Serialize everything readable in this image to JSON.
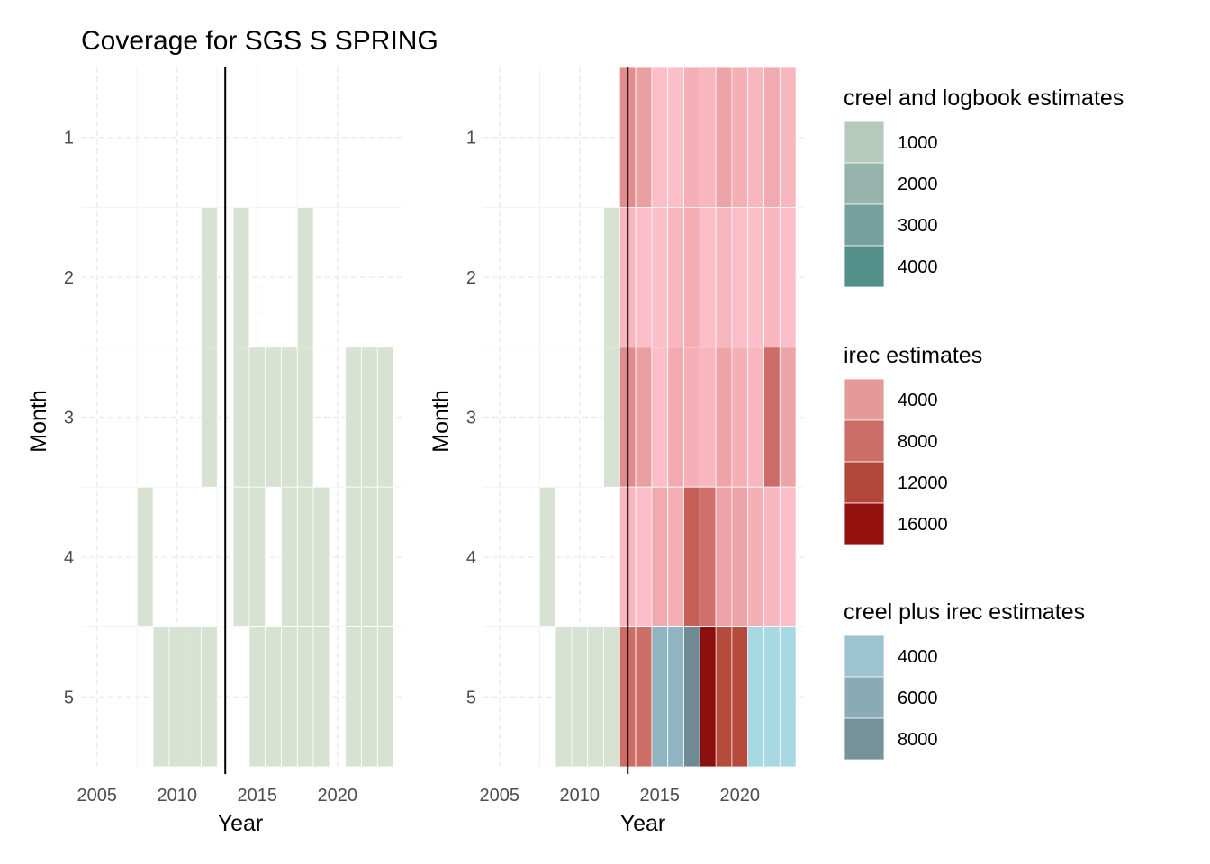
{
  "chart_data": {
    "type": "heatmap",
    "title": "Coverage for SGS S SPRING",
    "xlabel": "Year",
    "ylabel": "Month",
    "x_ticks": [
      2005,
      2010,
      2015,
      2020
    ],
    "y_ticks": [
      1,
      2,
      3,
      4,
      5
    ],
    "xlim": [
      2004,
      2024
    ],
    "ylim": [
      0.5,
      5.5
    ],
    "grid": true,
    "vline_x": 2013,
    "legend_position": "right",
    "colors": {
      "creel_base": "#d8e2d3",
      "creel_scale": [
        "#b6cabc",
        "#97b4ac",
        "#75a09b",
        "#54908a"
      ],
      "irec_scale": [
        "#e59a9a",
        "#cc6e68",
        "#b24639",
        "#94120e"
      ],
      "combo_scale": [
        "#9dc3d0",
        "#8aaab5",
        "#76939c"
      ]
    },
    "legends": [
      {
        "title": "creel and logbook estimates",
        "items": [
          {
            "label": "1000",
            "color": "#b6cabc"
          },
          {
            "label": "2000",
            "color": "#97b4ac"
          },
          {
            "label": "3000",
            "color": "#75a09b"
          },
          {
            "label": "4000",
            "color": "#54908a"
          }
        ]
      },
      {
        "title": "irec estimates",
        "items": [
          {
            "label": "4000",
            "color": "#e59a9a"
          },
          {
            "label": "8000",
            "color": "#cc6e68"
          },
          {
            "label": "12000",
            "color": "#b24639"
          },
          {
            "label": "16000",
            "color": "#94120e"
          }
        ]
      },
      {
        "title": "creel plus irec estimates",
        "items": [
          {
            "label": "4000",
            "color": "#9dc3d0"
          },
          {
            "label": "6000",
            "color": "#8aaab5"
          },
          {
            "label": "8000",
            "color": "#76939c"
          }
        ]
      }
    ],
    "panels": [
      {
        "name": "left",
        "series": [
          {
            "type": "creel",
            "cells": [
              {
                "x": 2012,
                "y": 2,
                "color": "#d8e2d3"
              },
              {
                "x": 2012,
                "y": 3,
                "color": "#d8e2d3"
              },
              {
                "x": 2008,
                "y": 4,
                "color": "#d8e2d3"
              },
              {
                "x": 2009,
                "y": 5,
                "color": "#d8e2d3"
              },
              {
                "x": 2010,
                "y": 5,
                "color": "#d8e2d3"
              },
              {
                "x": 2011,
                "y": 5,
                "color": "#d8e2d3"
              },
              {
                "x": 2012,
                "y": 5,
                "color": "#d8e2d3"
              },
              {
                "x": 2014,
                "y": 2,
                "color": "#d8e2d3"
              },
              {
                "x": 2014,
                "y": 3,
                "color": "#d8e2d3"
              },
              {
                "x": 2014,
                "y": 4,
                "color": "#d8e2d3"
              },
              {
                "x": 2015,
                "y": 3,
                "color": "#d8e2d3"
              },
              {
                "x": 2015,
                "y": 4,
                "color": "#d8e2d3"
              },
              {
                "x": 2015,
                "y": 5,
                "color": "#d8e2d3"
              },
              {
                "x": 2016,
                "y": 3,
                "color": "#d8e2d3"
              },
              {
                "x": 2016,
                "y": 5,
                "color": "#d8e2d3"
              },
              {
                "x": 2017,
                "y": 3,
                "color": "#d8e2d3"
              },
              {
                "x": 2017,
                "y": 4,
                "color": "#d8e2d3"
              },
              {
                "x": 2017,
                "y": 5,
                "color": "#d8e2d3"
              },
              {
                "x": 2018,
                "y": 2,
                "color": "#d8e2d3"
              },
              {
                "x": 2018,
                "y": 3,
                "color": "#d8e2d3"
              },
              {
                "x": 2018,
                "y": 4,
                "color": "#d8e2d3"
              },
              {
                "x": 2018,
                "y": 5,
                "color": "#d8e2d3"
              },
              {
                "x": 2019,
                "y": 4,
                "color": "#d8e2d3"
              },
              {
                "x": 2019,
                "y": 5,
                "color": "#d8e2d3"
              },
              {
                "x": 2021,
                "y": 3,
                "color": "#d8e2d3"
              },
              {
                "x": 2021,
                "y": 4,
                "color": "#d8e2d3"
              },
              {
                "x": 2021,
                "y": 5,
                "color": "#d8e2d3"
              },
              {
                "x": 2022,
                "y": 3,
                "color": "#d8e2d3"
              },
              {
                "x": 2022,
                "y": 4,
                "color": "#d8e2d3"
              },
              {
                "x": 2022,
                "y": 5,
                "color": "#d8e2d3"
              },
              {
                "x": 2023,
                "y": 3,
                "color": "#d8e2d3"
              },
              {
                "x": 2023,
                "y": 4,
                "color": "#d8e2d3"
              },
              {
                "x": 2023,
                "y": 5,
                "color": "#d8e2d3"
              }
            ]
          }
        ]
      },
      {
        "name": "right",
        "series": [
          {
            "type": "creel",
            "cells": [
              {
                "x": 2012,
                "y": 2,
                "color": "#d8e2d3"
              },
              {
                "x": 2012,
                "y": 3,
                "color": "#d8e2d3"
              },
              {
                "x": 2008,
                "y": 4,
                "color": "#d8e2d3"
              },
              {
                "x": 2009,
                "y": 5,
                "color": "#d8e2d3"
              },
              {
                "x": 2010,
                "y": 5,
                "color": "#d8e2d3"
              },
              {
                "x": 2011,
                "y": 5,
                "color": "#d8e2d3"
              },
              {
                "x": 2012,
                "y": 5,
                "color": "#d8e2d3"
              }
            ]
          },
          {
            "type": "irec",
            "cells": [
              {
                "x": 2013,
                "y": 1,
                "color": "#e38e8e"
              },
              {
                "x": 2014,
                "y": 1,
                "color": "#e9a0a2"
              },
              {
                "x": 2015,
                "y": 1,
                "color": "#fcbfc9"
              },
              {
                "x": 2016,
                "y": 1,
                "color": "#fcbfc9"
              },
              {
                "x": 2017,
                "y": 1,
                "color": "#f5b0b6"
              },
              {
                "x": 2018,
                "y": 1,
                "color": "#f8b7bf"
              },
              {
                "x": 2019,
                "y": 1,
                "color": "#eda3a7"
              },
              {
                "x": 2020,
                "y": 1,
                "color": "#f5b0b6"
              },
              {
                "x": 2021,
                "y": 1,
                "color": "#f8b7bf"
              },
              {
                "x": 2022,
                "y": 1,
                "color": "#f1aaaf"
              },
              {
                "x": 2023,
                "y": 1,
                "color": "#f8b7bf"
              },
              {
                "x": 2013,
                "y": 2,
                "color": "#f8b7bf"
              },
              {
                "x": 2014,
                "y": 2,
                "color": "#fcbfc9"
              },
              {
                "x": 2015,
                "y": 2,
                "color": "#fcbfc9"
              },
              {
                "x": 2016,
                "y": 2,
                "color": "#f8b7bf"
              },
              {
                "x": 2017,
                "y": 2,
                "color": "#f3adb3"
              },
              {
                "x": 2018,
                "y": 2,
                "color": "#fcbfc9"
              },
              {
                "x": 2019,
                "y": 2,
                "color": "#f8b7bf"
              },
              {
                "x": 2020,
                "y": 2,
                "color": "#fcbfc9"
              },
              {
                "x": 2021,
                "y": 2,
                "color": "#fcbfc9"
              },
              {
                "x": 2022,
                "y": 2,
                "color": "#f8b7bf"
              },
              {
                "x": 2023,
                "y": 2,
                "color": "#fcbfc9"
              },
              {
                "x": 2013,
                "y": 3,
                "color": "#de8c8c"
              },
              {
                "x": 2014,
                "y": 3,
                "color": "#e9a0a2"
              },
              {
                "x": 2015,
                "y": 3,
                "color": "#fcbfc9"
              },
              {
                "x": 2016,
                "y": 3,
                "color": "#f1aaaf"
              },
              {
                "x": 2017,
                "y": 3,
                "color": "#f5b0b6"
              },
              {
                "x": 2018,
                "y": 3,
                "color": "#f8b7bf"
              },
              {
                "x": 2019,
                "y": 3,
                "color": "#eda3a7"
              },
              {
                "x": 2020,
                "y": 3,
                "color": "#f5b0b6"
              },
              {
                "x": 2021,
                "y": 3,
                "color": "#f8b7bf"
              },
              {
                "x": 2022,
                "y": 3,
                "color": "#cc6b67"
              },
              {
                "x": 2023,
                "y": 3,
                "color": "#eda3a7"
              },
              {
                "x": 2013,
                "y": 4,
                "color": "#f8b7bf"
              },
              {
                "x": 2014,
                "y": 4,
                "color": "#fcbfc9"
              },
              {
                "x": 2015,
                "y": 4,
                "color": "#f1aaaf"
              },
              {
                "x": 2016,
                "y": 4,
                "color": "#f5b0b6"
              },
              {
                "x": 2017,
                "y": 4,
                "color": "#c55f58"
              },
              {
                "x": 2018,
                "y": 4,
                "color": "#cf706b"
              },
              {
                "x": 2019,
                "y": 4,
                "color": "#eda3a7"
              },
              {
                "x": 2020,
                "y": 4,
                "color": "#eda3a7"
              },
              {
                "x": 2021,
                "y": 4,
                "color": "#f5b0b6"
              },
              {
                "x": 2022,
                "y": 4,
                "color": "#f8b7bf"
              },
              {
                "x": 2023,
                "y": 4,
                "color": "#fcbfc9"
              },
              {
                "x": 2013,
                "y": 5,
                "color": "#cd6e66"
              },
              {
                "x": 2014,
                "y": 5,
                "color": "#cd6e66"
              },
              {
                "x": 2019,
                "y": 5,
                "color": "#b54a3d"
              },
              {
                "x": 2020,
                "y": 5,
                "color": "#b54a3d"
              }
            ]
          },
          {
            "type": "combo",
            "cells": [
              {
                "x": 2015,
                "y": 5,
                "color": "#8fb4c2"
              },
              {
                "x": 2016,
                "y": 5,
                "color": "#8fb4c2"
              },
              {
                "x": 2017,
                "y": 5,
                "color": "#6f8a95"
              },
              {
                "x": 2018,
                "y": 5,
                "color": "#8b0f0d"
              },
              {
                "x": 2021,
                "y": 5,
                "color": "#a8d8e4"
              },
              {
                "x": 2022,
                "y": 5,
                "color": "#a8d8e4"
              },
              {
                "x": 2023,
                "y": 5,
                "color": "#a8d8e4"
              }
            ]
          }
        ]
      }
    ]
  }
}
